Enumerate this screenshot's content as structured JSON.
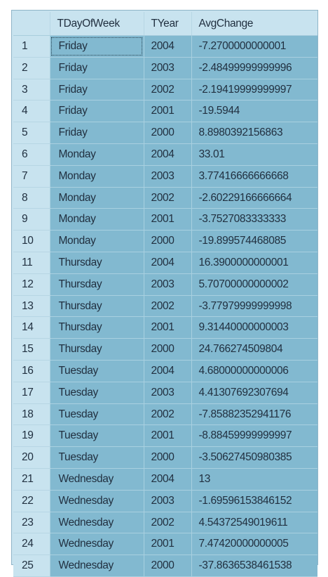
{
  "grid": {
    "columns": [
      "",
      "TDayOfWeek",
      "TYear",
      "AvgChange"
    ],
    "rows": [
      {
        "num": "1",
        "day": "Friday",
        "year": "2004",
        "avg": "-7.2700000000001"
      },
      {
        "num": "2",
        "day": "Friday",
        "year": "2003",
        "avg": "-2.48499999999996"
      },
      {
        "num": "3",
        "day": "Friday",
        "year": "2002",
        "avg": "-2.19419999999997"
      },
      {
        "num": "4",
        "day": "Friday",
        "year": "2001",
        "avg": "-19.5944"
      },
      {
        "num": "5",
        "day": "Friday",
        "year": "2000",
        "avg": "8.8980392156863"
      },
      {
        "num": "6",
        "day": "Monday",
        "year": "2004",
        "avg": "33.01"
      },
      {
        "num": "7",
        "day": "Monday",
        "year": "2003",
        "avg": "3.77416666666668"
      },
      {
        "num": "8",
        "day": "Monday",
        "year": "2002",
        "avg": "-2.60229166666664"
      },
      {
        "num": "9",
        "day": "Monday",
        "year": "2001",
        "avg": "-3.7527083333333"
      },
      {
        "num": "10",
        "day": "Monday",
        "year": "2000",
        "avg": "-19.899574468085"
      },
      {
        "num": "11",
        "day": "Thursday",
        "year": "2004",
        "avg": "16.3900000000001"
      },
      {
        "num": "12",
        "day": "Thursday",
        "year": "2003",
        "avg": "5.70700000000002"
      },
      {
        "num": "13",
        "day": "Thursday",
        "year": "2002",
        "avg": "-3.77979999999998"
      },
      {
        "num": "14",
        "day": "Thursday",
        "year": "2001",
        "avg": "9.31440000000003"
      },
      {
        "num": "15",
        "day": "Thursday",
        "year": "2000",
        "avg": "24.766274509804"
      },
      {
        "num": "16",
        "day": "Tuesday",
        "year": "2004",
        "avg": "4.68000000000006"
      },
      {
        "num": "17",
        "day": "Tuesday",
        "year": "2003",
        "avg": "4.41307692307694"
      },
      {
        "num": "18",
        "day": "Tuesday",
        "year": "2002",
        "avg": "-7.85882352941176"
      },
      {
        "num": "19",
        "day": "Tuesday",
        "year": "2001",
        "avg": "-8.88459999999997"
      },
      {
        "num": "20",
        "day": "Tuesday",
        "year": "2000",
        "avg": "-3.50627450980385"
      },
      {
        "num": "21",
        "day": "Wednesday",
        "year": "2004",
        "avg": "13"
      },
      {
        "num": "22",
        "day": "Wednesday",
        "year": "2003",
        "avg": "-1.69596153846152"
      },
      {
        "num": "23",
        "day": "Wednesday",
        "year": "2002",
        "avg": "4.54372549019611"
      },
      {
        "num": "24",
        "day": "Wednesday",
        "year": "2001",
        "avg": "7.47420000000005"
      },
      {
        "num": "25",
        "day": "Wednesday",
        "year": "2000",
        "avg": "-37.8636538461538"
      }
    ]
  },
  "colors": {
    "header_bg": "#c8e3ef",
    "cell_bg": "#82b9d0",
    "text": "#213040"
  }
}
